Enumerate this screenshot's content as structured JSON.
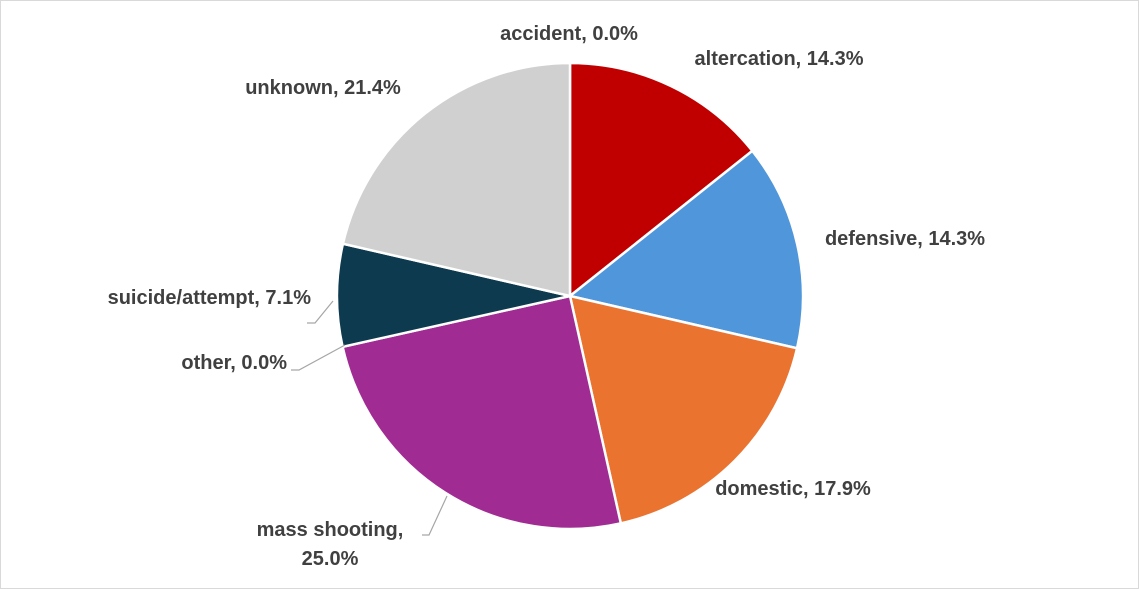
{
  "chart_data": {
    "type": "pie",
    "title": "",
    "label_format": "{name}, {pct}",
    "slices": [
      {
        "name": "accident",
        "value": 0.0,
        "pct_label": "0.0%",
        "color": "#a5a5a5"
      },
      {
        "name": "altercation",
        "value": 14.3,
        "pct_label": "14.3%",
        "color": "#c00000"
      },
      {
        "name": "defensive",
        "value": 14.3,
        "pct_label": "14.3%",
        "color": "#5096db"
      },
      {
        "name": "domestic",
        "value": 17.9,
        "pct_label": "17.9%",
        "color": "#eb7330"
      },
      {
        "name": "mass shooting",
        "value": 25.0,
        "pct_label": "25.0%",
        "color": "#a02b93"
      },
      {
        "name": "other",
        "value": 0.0,
        "pct_label": "0.0%",
        "color": "#808080"
      },
      {
        "name": "suicide/attempt",
        "value": 7.1,
        "pct_label": "7.1%",
        "color": "#0e3a4f"
      },
      {
        "name": "unknown",
        "value": 21.4,
        "pct_label": "21.4%",
        "color": "#d0d0d0"
      }
    ],
    "legend": "none"
  }
}
